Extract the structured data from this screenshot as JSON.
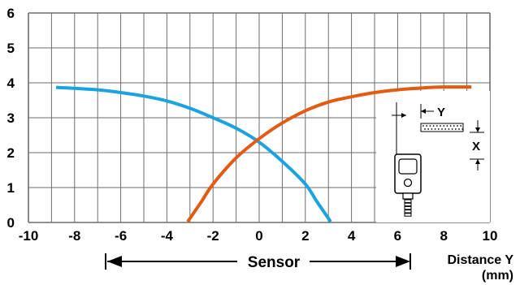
{
  "chart_data": {
    "type": "line",
    "xlim": [
      -10,
      10
    ],
    "ylim": [
      0,
      6
    ],
    "grid": true,
    "x_ticks": [
      "-10",
      "-8",
      "-6",
      "-4",
      "-2",
      "0",
      "2",
      "4",
      "6",
      "8",
      "10"
    ],
    "y_ticks": [
      "0",
      "1",
      "2",
      "3",
      "4",
      "5",
      "6"
    ],
    "xlabel_line1": "Distance Y",
    "xlabel_line2": "(mm)",
    "sensor_label": "Sensor",
    "inset": {
      "y_label": "Y",
      "x_label": "X"
    },
    "series": [
      {
        "color": "#1aa3e0",
        "x": [
          -8.8,
          -7,
          -6,
          -5,
          -4,
          -3,
          -2,
          -1,
          0,
          1,
          2,
          2.5,
          3.1
        ],
        "y": [
          3.87,
          3.8,
          3.72,
          3.62,
          3.48,
          3.27,
          3.0,
          2.7,
          2.3,
          1.75,
          1.1,
          0.6,
          0.02
        ]
      },
      {
        "color": "#e35a12",
        "x": [
          -3.1,
          -2.5,
          -2,
          -1,
          0,
          1,
          2,
          3,
          4,
          5,
          6,
          7,
          8,
          9.2
        ],
        "y": [
          0.02,
          0.6,
          1.1,
          1.85,
          2.4,
          2.85,
          3.2,
          3.45,
          3.6,
          3.72,
          3.8,
          3.85,
          3.88,
          3.88
        ]
      }
    ]
  }
}
